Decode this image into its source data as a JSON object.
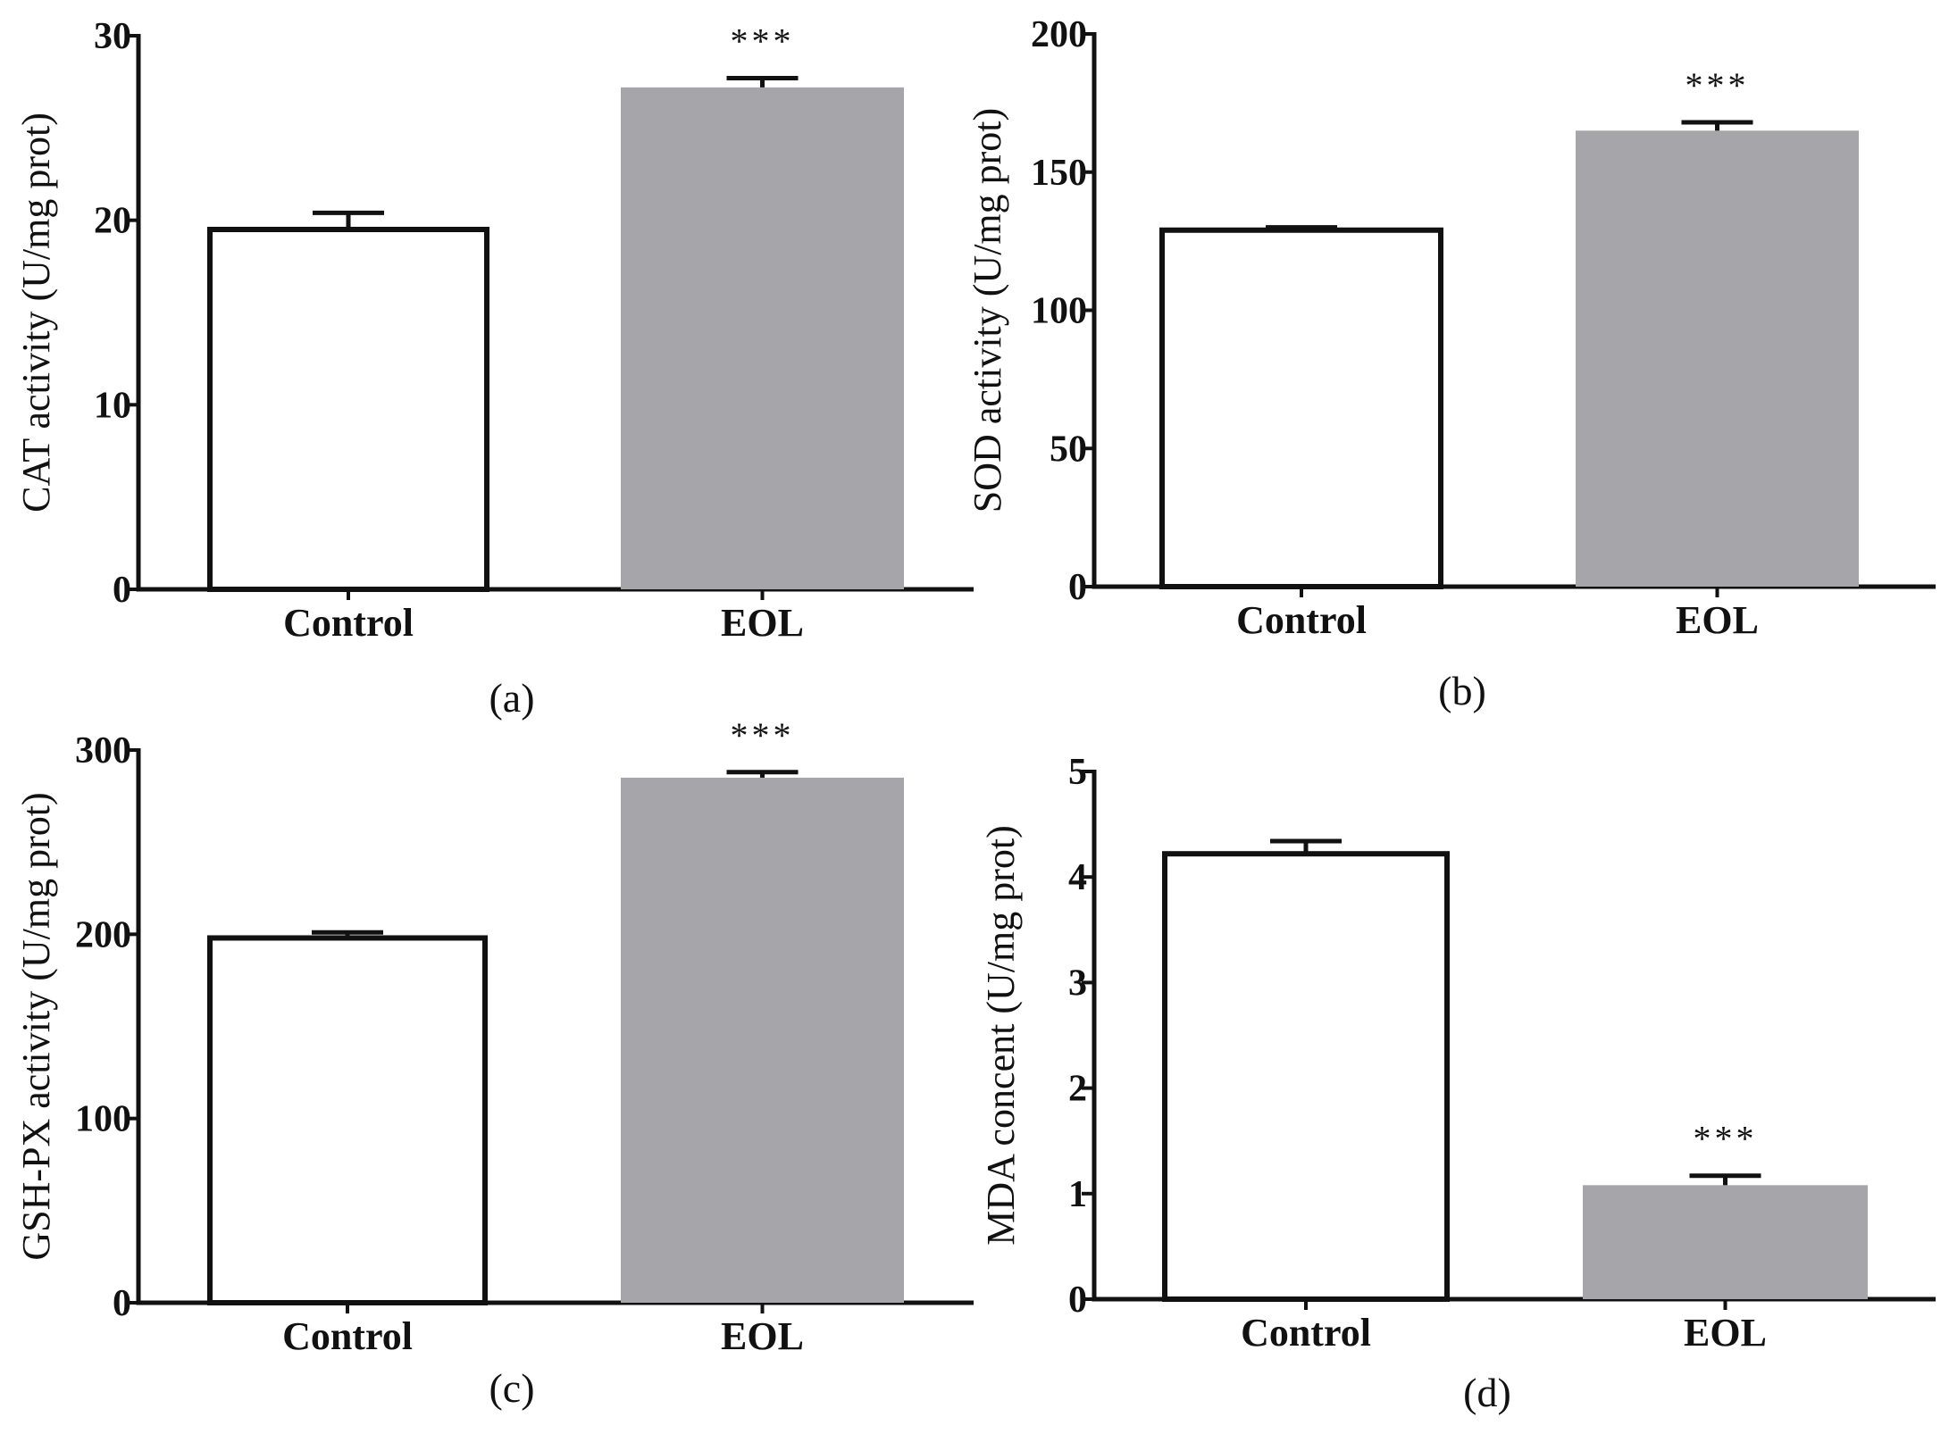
{
  "chart_data": [
    {
      "panel": "(a)",
      "type": "bar",
      "categories": [
        "Control",
        "EOL"
      ],
      "values": [
        19.5,
        27.2
      ],
      "errors": [
        0.9,
        0.5
      ],
      "significance": [
        "",
        "***"
      ],
      "ylabel": "CAT activity (U/mg prot)",
      "ylim": [
        0,
        30
      ],
      "yticks": [
        0,
        10,
        20,
        30
      ],
      "colors": [
        "#ffffff",
        "#a6a6aa"
      ]
    },
    {
      "panel": "(b)",
      "type": "bar",
      "categories": [
        "Control",
        "EOL"
      ],
      "values": [
        129,
        165
      ],
      "errors": [
        1.0,
        3.0
      ],
      "significance": [
        "",
        "***"
      ],
      "ylabel": "SOD activity (U/mg prot)",
      "ylim": [
        0,
        200
      ],
      "yticks": [
        0,
        50,
        100,
        150,
        200
      ],
      "colors": [
        "#ffffff",
        "#a6a6aa"
      ]
    },
    {
      "panel": "(c)",
      "type": "bar",
      "categories": [
        "Control",
        "EOL"
      ],
      "values": [
        198,
        285
      ],
      "errors": [
        3.0,
        3.0
      ],
      "significance": [
        "",
        "***"
      ],
      "ylabel": "GSH-PX activity (U/mg prot)",
      "ylim": [
        0,
        300
      ],
      "yticks": [
        0,
        100,
        200,
        300
      ],
      "colors": [
        "#ffffff",
        "#a6a6aa"
      ]
    },
    {
      "panel": "(d)",
      "type": "bar",
      "categories": [
        "Control",
        "EOL"
      ],
      "values": [
        4.22,
        1.08
      ],
      "errors": [
        0.12,
        0.09
      ],
      "significance": [
        "",
        "***"
      ],
      "ylabel": "MDA concent (U/mg prot)",
      "ylim": [
        0,
        5
      ],
      "yticks": [
        0,
        1,
        2,
        3,
        4,
        5
      ],
      "colors": [
        "#ffffff",
        "#a6a6aa"
      ]
    }
  ]
}
